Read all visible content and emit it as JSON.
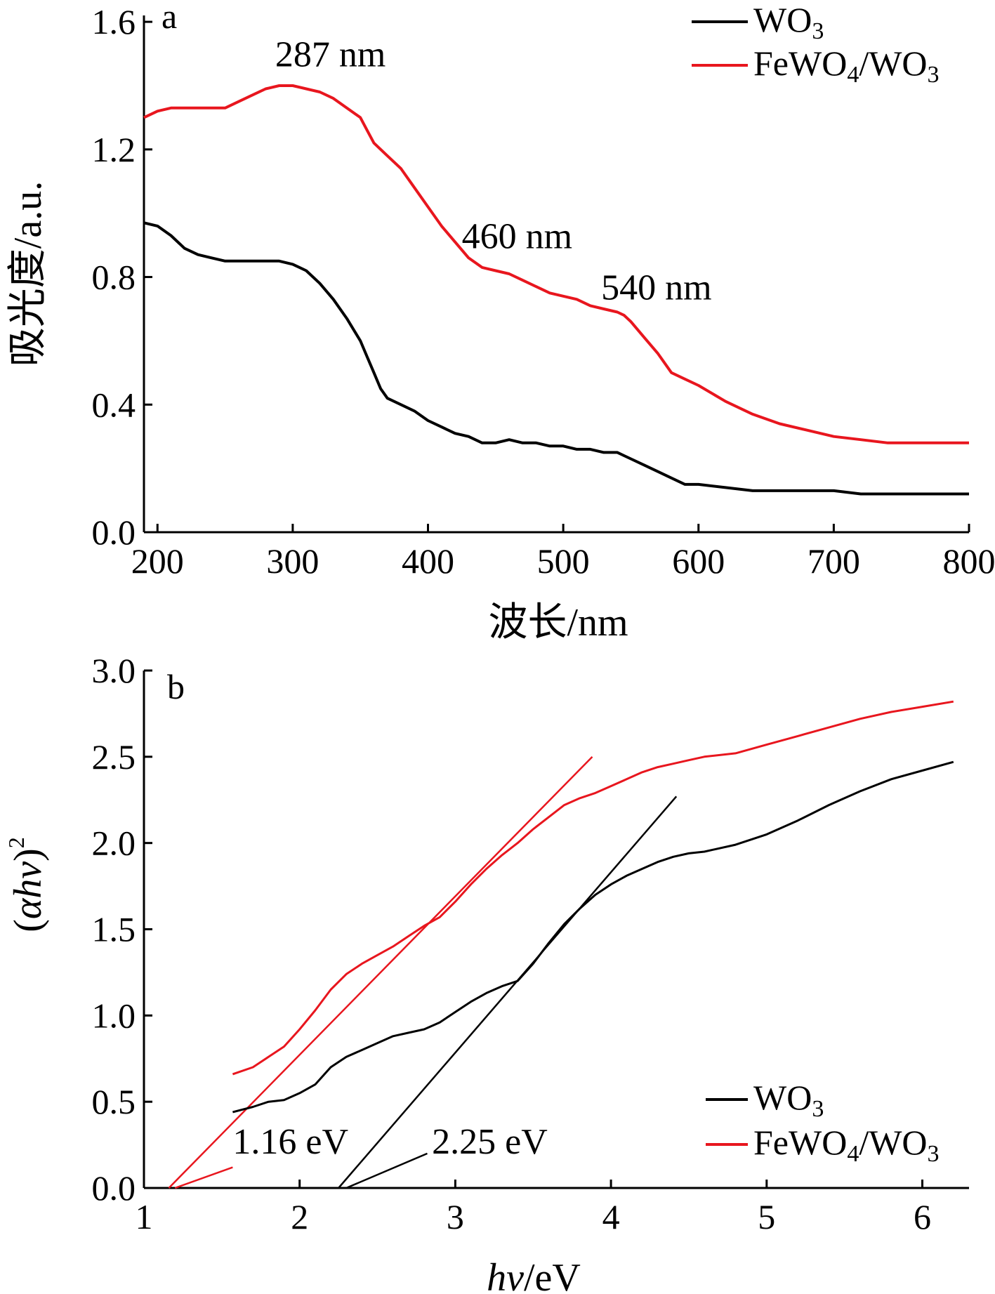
{
  "chart_data": [
    {
      "panel": "a",
      "type": "line",
      "xlabel": "波长/nm",
      "ylabel": "吸光度/a.u.",
      "xlim": [
        190,
        800
      ],
      "ylim": [
        0,
        1.62
      ],
      "xticks": [
        "200",
        "300",
        "400",
        "500",
        "600",
        "700",
        "800"
      ],
      "xtick_values": [
        200,
        300,
        400,
        500,
        600,
        700,
        800
      ],
      "yticks": [
        "0.0",
        "0.4",
        "0.8",
        "1.2",
        "1.6"
      ],
      "ytick_values": [
        0,
        0.4,
        0.8,
        1.2,
        1.6
      ],
      "legend_position": "top-right",
      "series": [
        {
          "name": "WO₃",
          "color": "#000000",
          "x": [
            190,
            200,
            210,
            220,
            230,
            240,
            250,
            260,
            270,
            280,
            290,
            300,
            310,
            320,
            330,
            340,
            350,
            355,
            360,
            365,
            370,
            380,
            390,
            400,
            410,
            420,
            430,
            440,
            450,
            460,
            470,
            480,
            490,
            500,
            510,
            520,
            530,
            540,
            545,
            550,
            560,
            570,
            580,
            590,
            600,
            620,
            640,
            660,
            680,
            700,
            720,
            740,
            760,
            780,
            800
          ],
          "y": [
            0.97,
            0.96,
            0.93,
            0.89,
            0.87,
            0.86,
            0.85,
            0.85,
            0.85,
            0.85,
            0.85,
            0.84,
            0.82,
            0.78,
            0.73,
            0.67,
            0.6,
            0.55,
            0.5,
            0.45,
            0.42,
            0.4,
            0.38,
            0.35,
            0.33,
            0.31,
            0.3,
            0.28,
            0.28,
            0.29,
            0.28,
            0.28,
            0.27,
            0.27,
            0.26,
            0.26,
            0.25,
            0.25,
            0.24,
            0.23,
            0.21,
            0.19,
            0.17,
            0.15,
            0.15,
            0.14,
            0.13,
            0.13,
            0.13,
            0.13,
            0.12,
            0.12,
            0.12,
            0.12,
            0.12
          ]
        },
        {
          "name": "FeWO₄/WO₃",
          "color": "#e8161e",
          "x": [
            190,
            200,
            210,
            220,
            230,
            240,
            250,
            260,
            270,
            280,
            290,
            300,
            310,
            320,
            330,
            340,
            350,
            355,
            360,
            365,
            370,
            380,
            390,
            400,
            410,
            420,
            430,
            440,
            450,
            460,
            470,
            480,
            490,
            500,
            510,
            520,
            530,
            540,
            545,
            550,
            560,
            570,
            580,
            590,
            600,
            620,
            640,
            660,
            680,
            700,
            720,
            740,
            760,
            780,
            800
          ],
          "y": [
            1.3,
            1.32,
            1.33,
            1.33,
            1.33,
            1.33,
            1.33,
            1.35,
            1.37,
            1.39,
            1.4,
            1.4,
            1.39,
            1.38,
            1.36,
            1.33,
            1.3,
            1.26,
            1.22,
            1.2,
            1.18,
            1.14,
            1.08,
            1.02,
            0.96,
            0.91,
            0.86,
            0.83,
            0.82,
            0.81,
            0.79,
            0.77,
            0.75,
            0.74,
            0.73,
            0.71,
            0.7,
            0.69,
            0.68,
            0.66,
            0.61,
            0.56,
            0.5,
            0.48,
            0.46,
            0.41,
            0.37,
            0.34,
            0.32,
            0.3,
            0.29,
            0.28,
            0.28,
            0.28,
            0.28
          ]
        }
      ],
      "annotations": [
        {
          "text": "287 nm",
          "x": 287,
          "y": 1.46
        },
        {
          "text": "460 nm",
          "x": 425,
          "y": 0.89
        },
        {
          "text": "540 nm",
          "x": 528,
          "y": 0.73
        }
      ]
    },
    {
      "panel": "b",
      "type": "line",
      "xlabel_italic": "hv",
      "xlabel_rest": "/eV",
      "ylabel_open": "(",
      "ylabel_italic": "αhv",
      "ylabel_close": ")",
      "ylabel_sup": "2",
      "xlim": [
        1,
        6.3
      ],
      "ylim": [
        0,
        3.0
      ],
      "xticks": [
        "1",
        "2",
        "3",
        "4",
        "5",
        "6"
      ],
      "xtick_values": [
        1,
        2,
        3,
        4,
        5,
        6
      ],
      "yticks": [
        "0.0",
        "0.5",
        "1.0",
        "1.5",
        "2.0",
        "2.5",
        "3.0"
      ],
      "ytick_values": [
        0,
        0.5,
        1.0,
        1.5,
        2.0,
        2.5,
        3.0
      ],
      "legend_position": "bottom-right",
      "series": [
        {
          "name": "WO₃",
          "color": "#000000",
          "x": [
            1.57,
            1.7,
            1.8,
            1.9,
            2.0,
            2.1,
            2.2,
            2.3,
            2.4,
            2.5,
            2.6,
            2.7,
            2.8,
            2.9,
            3.0,
            3.1,
            3.2,
            3.3,
            3.4,
            3.5,
            3.6,
            3.7,
            3.8,
            3.9,
            4.0,
            4.1,
            4.2,
            4.3,
            4.4,
            4.5,
            4.6,
            4.8,
            5.0,
            5.2,
            5.4,
            5.6,
            5.8,
            6.0,
            6.2
          ],
          "y": [
            0.44,
            0.47,
            0.5,
            0.51,
            0.55,
            0.6,
            0.7,
            0.76,
            0.8,
            0.84,
            0.88,
            0.9,
            0.92,
            0.96,
            1.02,
            1.08,
            1.13,
            1.17,
            1.2,
            1.3,
            1.42,
            1.53,
            1.62,
            1.7,
            1.76,
            1.81,
            1.85,
            1.89,
            1.92,
            1.94,
            1.95,
            1.99,
            2.05,
            2.13,
            2.22,
            2.3,
            2.37,
            2.42,
            2.47
          ]
        },
        {
          "name": "FeWO₄/WO₃",
          "color": "#e8161e",
          "x": [
            1.57,
            1.7,
            1.8,
            1.9,
            2.0,
            2.1,
            2.2,
            2.3,
            2.4,
            2.5,
            2.6,
            2.7,
            2.8,
            2.9,
            3.0,
            3.1,
            3.2,
            3.3,
            3.4,
            3.5,
            3.6,
            3.7,
            3.8,
            3.9,
            4.0,
            4.1,
            4.2,
            4.3,
            4.4,
            4.5,
            4.6,
            4.8,
            5.0,
            5.2,
            5.4,
            5.6,
            5.8,
            6.0,
            6.2
          ],
          "y": [
            0.66,
            0.7,
            0.76,
            0.82,
            0.92,
            1.03,
            1.15,
            1.24,
            1.3,
            1.35,
            1.4,
            1.46,
            1.52,
            1.57,
            1.66,
            1.76,
            1.85,
            1.93,
            2.0,
            2.08,
            2.15,
            2.22,
            2.26,
            2.29,
            2.33,
            2.37,
            2.41,
            2.44,
            2.46,
            2.48,
            2.5,
            2.52,
            2.57,
            2.62,
            2.67,
            2.72,
            2.76,
            2.79,
            2.82
          ]
        }
      ],
      "fit_lines": [
        {
          "color": "#e8161e",
          "x": [
            1.16,
            3.88
          ],
          "y": [
            0,
            2.5
          ]
        },
        {
          "color": "#e8161e",
          "x": [
            1.2,
            1.57
          ],
          "y": [
            0,
            0.12
          ]
        },
        {
          "color": "#000000",
          "x": [
            2.25,
            4.42
          ],
          "y": [
            0,
            2.27
          ]
        },
        {
          "color": "#000000",
          "x": [
            2.3,
            2.82
          ],
          "y": [
            0,
            0.2
          ]
        }
      ],
      "annotations": [
        {
          "text": "1.16 eV",
          "x": 1.57,
          "y": 0.2
        },
        {
          "text": "2.25 eV",
          "x": 2.85,
          "y": 0.2
        }
      ]
    }
  ]
}
